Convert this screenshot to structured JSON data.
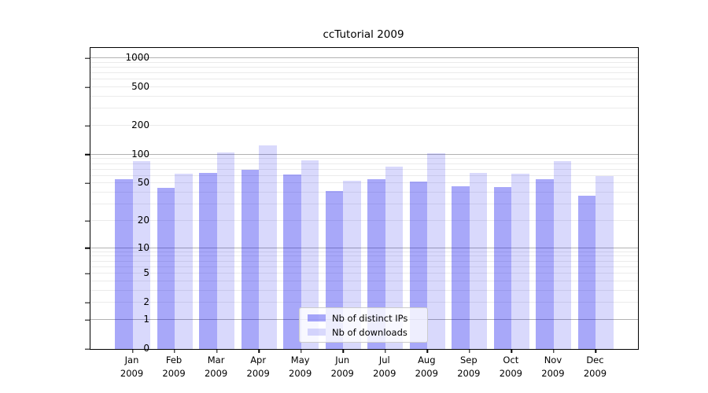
{
  "title": "ccTutorial 2009",
  "colors": {
    "bar_dark": "rgba(0,0,238,0.34)",
    "bar_light": "rgba(0,0,238,0.15)",
    "grid_major": "#b2b2b2",
    "grid_minor": "#ebebeb",
    "axis": "#000000",
    "legend_border": "#cccccc",
    "legend_bg": "rgba(255,255,255,0.8)"
  },
  "legend": {
    "items": [
      {
        "label": "Nb of distinct IPs",
        "color_key": "bar_dark"
      },
      {
        "label": "Nb of downloads",
        "color_key": "bar_light"
      }
    ],
    "position": "lower center"
  },
  "chart_data": {
    "type": "bar",
    "title": "ccTutorial 2009",
    "categories": [
      "Jan 2009",
      "Feb 2009",
      "Mar 2009",
      "Apr 2009",
      "May 2009",
      "Jun 2009",
      "Jul 2009",
      "Aug 2009",
      "Sep 2009",
      "Oct 2009",
      "Nov 2009",
      "Dec 2009"
    ],
    "series": [
      {
        "name": "Nb of distinct IPs",
        "values": [
          55,
          45,
          65,
          70,
          62,
          42,
          56,
          52,
          47,
          46,
          56,
          37
        ]
      },
      {
        "name": "Nb of downloads",
        "values": [
          86,
          63,
          105,
          126,
          87,
          53,
          75,
          103,
          65,
          63,
          86,
          60
        ]
      }
    ],
    "xlabel": "",
    "ylabel": "",
    "y_scale": "symlog (log1p)",
    "y_ticks": [
      0,
      1,
      2,
      5,
      10,
      20,
      50,
      100,
      200,
      500,
      1000
    ],
    "y_major_gridlines": [
      1,
      10,
      100,
      1000
    ],
    "ylim": [
      0,
      1276
    ],
    "grid": true,
    "legend_position": "lower center"
  }
}
